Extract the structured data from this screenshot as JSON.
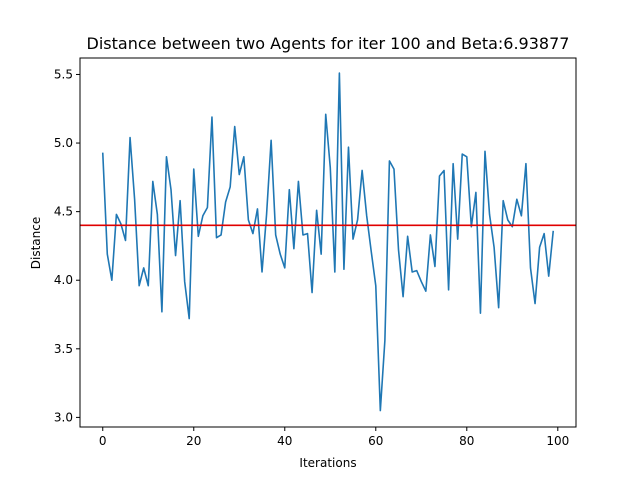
{
  "chart_data": {
    "type": "line",
    "title": "Distance between two Agents for iter 100 and Beta:6.93877",
    "xlabel": "Iterations",
    "ylabel": "Distance",
    "xlim": [
      -5,
      104
    ],
    "ylim": [
      2.93,
      5.62
    ],
    "xticks": [
      0,
      20,
      40,
      60,
      80,
      100
    ],
    "yticks": [
      3.0,
      3.5,
      4.0,
      4.5,
      5.0,
      5.5
    ],
    "xtick_labels": [
      "0",
      "20",
      "40",
      "60",
      "80",
      "100"
    ],
    "ytick_labels": [
      "3.0",
      "3.5",
      "4.0",
      "4.5",
      "5.0",
      "5.5"
    ],
    "grid": false,
    "series": [
      {
        "name": "distance",
        "color": "#1f77b4",
        "x": [
          0,
          1,
          2,
          3,
          4,
          5,
          6,
          7,
          8,
          9,
          10,
          11,
          12,
          13,
          14,
          15,
          16,
          17,
          18,
          19,
          20,
          21,
          22,
          23,
          24,
          25,
          26,
          27,
          28,
          29,
          30,
          31,
          32,
          33,
          34,
          35,
          36,
          37,
          38,
          39,
          40,
          41,
          42,
          43,
          44,
          45,
          46,
          47,
          48,
          49,
          50,
          51,
          52,
          53,
          54,
          55,
          56,
          57,
          58,
          59,
          60,
          61,
          62,
          63,
          64,
          65,
          66,
          67,
          68,
          69,
          70,
          71,
          72,
          73,
          74,
          75,
          76,
          77,
          78,
          79,
          80,
          81,
          82,
          83,
          84,
          85,
          86,
          87,
          88,
          89,
          90,
          91,
          92,
          93,
          94,
          95,
          96,
          97,
          98,
          99
        ],
        "values": [
          4.93,
          4.19,
          4.0,
          4.48,
          4.41,
          4.29,
          5.04,
          4.59,
          3.96,
          4.09,
          3.96,
          4.72,
          4.48,
          3.77,
          4.9,
          4.66,
          4.18,
          4.58,
          3.99,
          3.72,
          4.81,
          4.32,
          4.47,
          4.53,
          5.19,
          4.31,
          4.33,
          4.57,
          4.68,
          5.12,
          4.77,
          4.9,
          4.44,
          4.34,
          4.52,
          4.06,
          4.48,
          5.02,
          4.33,
          4.19,
          4.09,
          4.66,
          4.23,
          4.72,
          4.33,
          4.34,
          3.91,
          4.51,
          4.19,
          5.21,
          4.82,
          4.06,
          5.51,
          4.08,
          4.97,
          4.3,
          4.44,
          4.8,
          4.47,
          4.21,
          3.96,
          3.05,
          3.56,
          4.87,
          4.81,
          4.22,
          3.88,
          4.32,
          4.06,
          4.07,
          3.99,
          3.92,
          4.33,
          4.1,
          4.76,
          4.8,
          3.93,
          4.85,
          4.3,
          4.92,
          4.9,
          4.39,
          4.64,
          3.76,
          4.94,
          4.48,
          4.24,
          3.8,
          4.58,
          4.44,
          4.39,
          4.59,
          4.47,
          4.85,
          4.09,
          3.83,
          4.24,
          4.34,
          4.03,
          4.36
        ]
      }
    ],
    "reference_line": {
      "y": 4.4,
      "color": "#e00000"
    }
  }
}
